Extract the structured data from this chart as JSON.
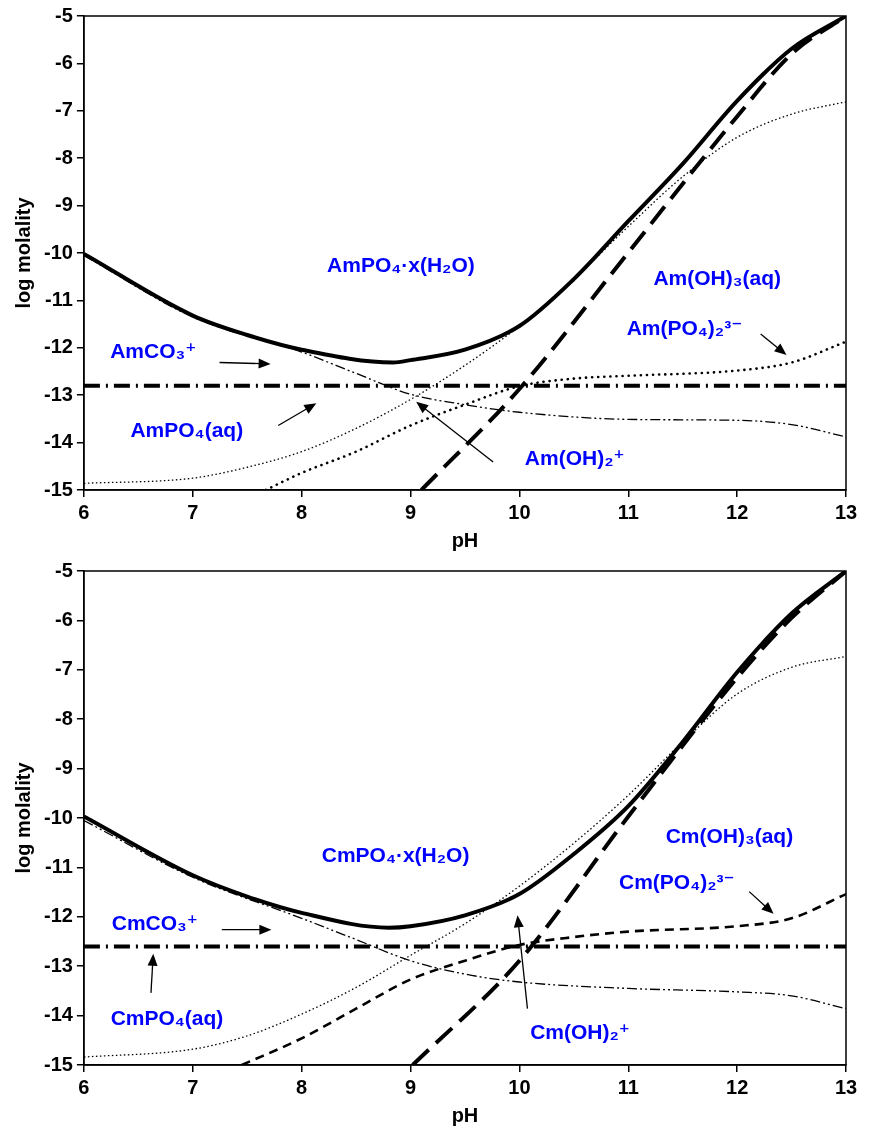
{
  "chart_data": [
    {
      "type": "line",
      "xlabel": "pH",
      "ylabel": "log molality",
      "xlim": [
        6,
        13
      ],
      "xticks": [
        6,
        7,
        8,
        9,
        10,
        11,
        12,
        13
      ],
      "ylim": [
        -15,
        -5
      ],
      "yticks": [
        -15,
        -14,
        -13,
        -12,
        -11,
        -10,
        -9,
        -8,
        -7,
        -6,
        -5
      ],
      "grid": false,
      "marker": "none",
      "series": [
        {
          "color": "#000000",
          "line_style": "solid",
          "x": [
            6,
            7,
            7.5,
            8,
            8.84,
            9,
            9.5,
            10,
            10.5,
            11,
            11.5,
            12,
            12.5,
            13
          ],
          "values": [
            -10.02,
            -11.32,
            -11.73,
            -12.04,
            -12.31,
            -12.26,
            -12.04,
            -11.54,
            -10.55,
            -9.33,
            -8.12,
            -6.79,
            -5.69,
            -5
          ]
        },
        {
          "color": "#000000",
          "line_style": "dashed",
          "x": [
            6,
            7,
            8,
            8.5,
            9,
            9.5,
            10,
            11,
            12,
            12.5,
            13
          ],
          "values": [
            -10.05,
            -11.35,
            -12.09,
            -12.54,
            -12.98,
            -13.2,
            -13.36,
            -13.51,
            -13.53,
            -13.62,
            -13.88
          ]
        },
        {
          "color": "#000000",
          "line_style": "dashed",
          "x": [
            6,
            13
          ],
          "values": [
            -12.8,
            -12.8
          ]
        },
        {
          "color": "#000000",
          "line_style": "dotted",
          "x": [
            6,
            7,
            7.5,
            8,
            8.5,
            9,
            9.5,
            10,
            10.5,
            11,
            11.5,
            12,
            12.5,
            13
          ],
          "values": [
            -14.86,
            -14.75,
            -14.52,
            -14.19,
            -13.7,
            -13.09,
            -12.37,
            -11.54,
            -10.55,
            -9.44,
            -8.39,
            -7.56,
            -7.07,
            -6.81
          ]
        },
        {
          "color": "#000000",
          "line_style": "dotted",
          "x": [
            7.67,
            8,
            8.5,
            9,
            9.5,
            10,
            10.5,
            11,
            12,
            12.5,
            13
          ],
          "values": [
            -15,
            -14.64,
            -14.19,
            -13.64,
            -13.2,
            -12.81,
            -12.65,
            -12.59,
            -12.48,
            -12.31,
            -11.87
          ]
        },
        {
          "color": "#000000",
          "line_style": "dashed",
          "x": [
            9.1,
            10,
            11,
            12,
            12.5,
            13
          ],
          "values": [
            -15,
            -12.87,
            -9.99,
            -7.12,
            -5.8,
            -5
          ]
        }
      ],
      "annotations": [
        "AmPO₄·x(H₂O)",
        "Am(OH)₃(aq)",
        "AmCO₃⁺",
        "AmPO₄(aq)",
        "Am(OH)₂⁺",
        "Am(PO₄)₂³⁻"
      ]
    },
    {
      "type": "line",
      "xlabel": "pH",
      "ylabel": "log molality",
      "xlim": [
        6,
        13
      ],
      "xticks": [
        6,
        7,
        8,
        9,
        10,
        11,
        12,
        13
      ],
      "ylim": [
        -15,
        -5
      ],
      "yticks": [
        -15,
        -14,
        -13,
        -12,
        -11,
        -10,
        -9,
        -8,
        -7,
        -6,
        -5
      ],
      "grid": false,
      "marker": "none",
      "series": [
        {
          "color": "#000000",
          "line_style": "solid",
          "x": [
            6,
            7,
            7.5,
            8,
            8.8,
            9,
            9.5,
            10,
            10.5,
            11,
            11.5,
            12,
            12.5,
            13
          ],
          "values": [
            -9.97,
            -11.16,
            -11.59,
            -11.92,
            -12.22,
            -12.19,
            -11.97,
            -11.54,
            -10.73,
            -9.76,
            -8.46,
            -7.05,
            -5.86,
            -5
          ]
        },
        {
          "color": "#000000",
          "line_style": "dashed",
          "x": [
            6,
            7,
            8,
            8.5,
            9,
            9.5,
            10,
            11,
            12,
            12.5,
            13
          ],
          "values": [
            -10.05,
            -11.2,
            -12.03,
            -12.46,
            -12.89,
            -13.16,
            -13.32,
            -13.45,
            -13.52,
            -13.6,
            -13.86
          ]
        },
        {
          "color": "#000000",
          "line_style": "dashed",
          "x": [
            6,
            13
          ],
          "values": [
            -12.6,
            -12.6
          ]
        },
        {
          "color": "#000000",
          "line_style": "dotted",
          "x": [
            6,
            7,
            7.5,
            8,
            8.5,
            9,
            9.5,
            10,
            10.5,
            11,
            11.5,
            12,
            12.5,
            13
          ],
          "values": [
            -14.84,
            -14.68,
            -14.41,
            -13.97,
            -13.43,
            -12.78,
            -12.14,
            -11.38,
            -10.51,
            -9.54,
            -8.46,
            -7.49,
            -6.95,
            -6.73
          ]
        },
        {
          "color": "#000000",
          "line_style": "dashed",
          "x": [
            7.45,
            8,
            8.5,
            9,
            9.5,
            10,
            10.5,
            11,
            12,
            12.5,
            13
          ],
          "values": [
            -15,
            -14.46,
            -13.86,
            -13.27,
            -12.89,
            -12.57,
            -12.41,
            -12.3,
            -12.19,
            -12.03,
            -11.54
          ]
        },
        {
          "color": "#000000",
          "line_style": "dashed",
          "x": [
            9.02,
            10,
            11,
            12,
            12.5,
            13
          ],
          "values": [
            -15,
            -12.89,
            -9.97,
            -7.16,
            -5.95,
            -5
          ]
        }
      ],
      "annotations": [
        "CmPO₄·x(H₂O)",
        "Cm(OH)₃(aq)",
        "CmCO₃⁺",
        "CmPO₄(aq)",
        "Cm(OH)₂⁺",
        "Cm(PO₄)₂³⁻"
      ]
    }
  ]
}
